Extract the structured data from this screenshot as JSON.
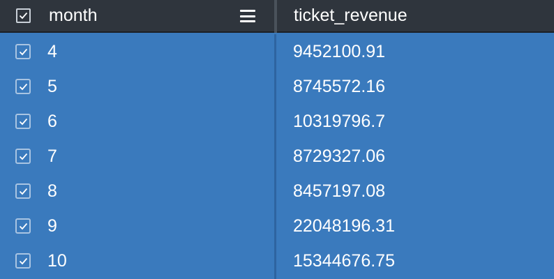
{
  "table": {
    "columns": [
      {
        "key": "month",
        "label": "month"
      },
      {
        "key": "ticket_revenue",
        "label": "ticket_revenue"
      }
    ],
    "header_checkbox_checked": true,
    "rows": [
      {
        "month": "4",
        "ticket_revenue": "9452100.91",
        "selected": true
      },
      {
        "month": "5",
        "ticket_revenue": "8745572.16",
        "selected": true
      },
      {
        "month": "6",
        "ticket_revenue": "10319796.7",
        "selected": true
      },
      {
        "month": "7",
        "ticket_revenue": "8729327.06",
        "selected": true
      },
      {
        "month": "8",
        "ticket_revenue": "8457197.08",
        "selected": true
      },
      {
        "month": "9",
        "ticket_revenue": "22048196.31",
        "selected": true
      },
      {
        "month": "10",
        "ticket_revenue": "15344676.75",
        "selected": true
      }
    ]
  },
  "colors": {
    "header_bg": "#2f353d",
    "row_selected_bg": "#3a7abd",
    "text": "#ffffff"
  },
  "icons": {
    "header_checkbox": "checkbox-checked-icon",
    "column_menu": "hamburger-menu-icon",
    "row_checkbox": "checkbox-checked-icon"
  }
}
